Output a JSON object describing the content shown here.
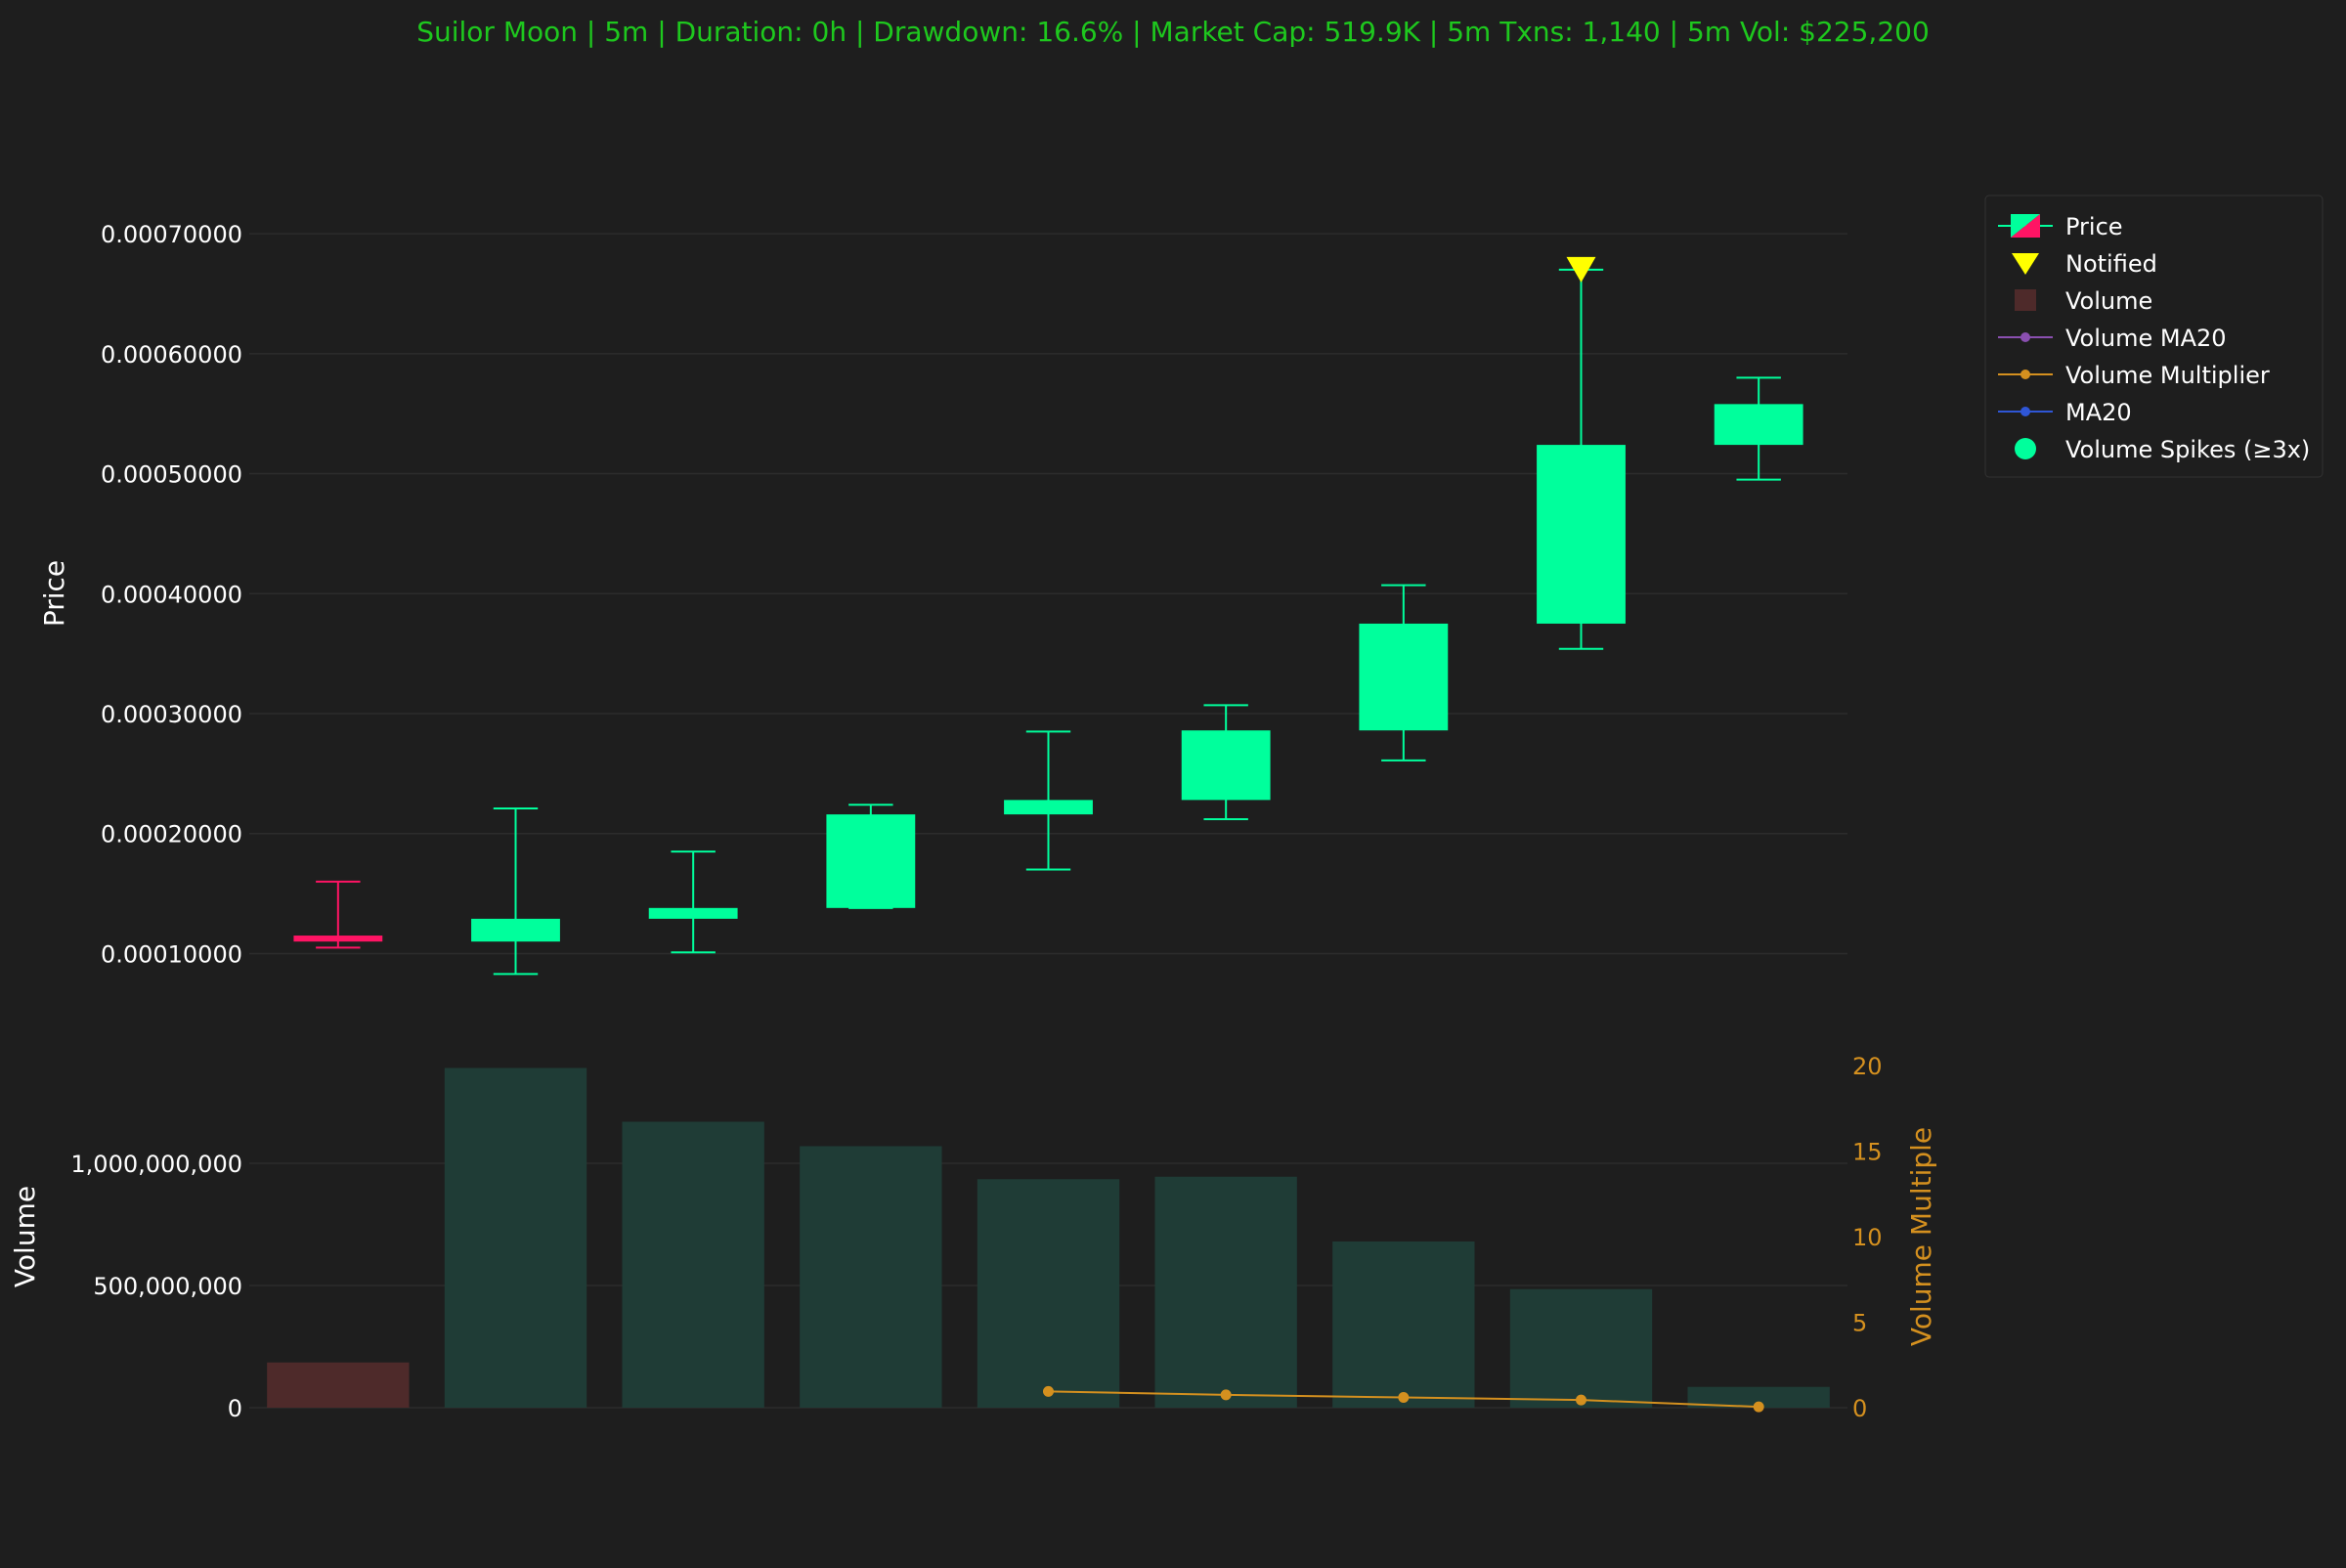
{
  "title": "Suilor Moon | 5m | Duration: 0h | Drawdown: 16.6% | Market Cap: 519.9K | 5m Txns: 1,140 | 5m Vol: $225,200",
  "colors": {
    "background": "#1e1e1e",
    "title": "#1ec81e",
    "up": "#00ff9c",
    "down": "#ff1464",
    "volume_up": "#1f3c36",
    "volume_down": "#4e2a2a",
    "multiplier": "#d4901f",
    "ma20_volume": "#8a4fb0",
    "ma20": "#2f56d6",
    "notified": "#ffff00",
    "grid": "#2c2c2c",
    "legend_border": "#333333",
    "text": "#ffffff"
  },
  "legend": {
    "items": [
      {
        "label": "Price",
        "icon": "candlestick-icon"
      },
      {
        "label": "Notified",
        "icon": "triangle-down-icon"
      },
      {
        "label": "Volume",
        "icon": "square-icon"
      },
      {
        "label": "Volume MA20",
        "icon": "line-marker-icon"
      },
      {
        "label": "Volume Multiplier",
        "icon": "line-marker-icon"
      },
      {
        "label": "MA20",
        "icon": "line-marker-icon"
      },
      {
        "label": "Volume Spikes (≥3x)",
        "icon": "circle-icon"
      }
    ]
  },
  "chart_data": {
    "type": "candlestick",
    "title": "Suilor Moon | 5m | Duration: 0h | Drawdown: 16.6% | Market Cap: 519.9K | 5m Txns: 1,140 | 5m Vol: $225,200",
    "price_panel": {
      "ylabel": "Price",
      "yticks": [
        "0.00010000",
        "0.00020000",
        "0.00030000",
        "0.00040000",
        "0.00050000",
        "0.00060000",
        "0.00070000"
      ],
      "ylim": [
        8e-05,
        0.00074
      ],
      "grid": true,
      "candles": [
        {
          "open": 0.000115,
          "high": 0.00016,
          "low": 0.000105,
          "close": 0.00011
        },
        {
          "open": 0.00011,
          "high": 0.000221,
          "low": 8.3e-05,
          "close": 0.000129
        },
        {
          "open": 0.000129,
          "high": 0.000185,
          "low": 0.000101,
          "close": 0.000138
        },
        {
          "open": 0.000138,
          "high": 0.000224,
          "low": 0.000138,
          "close": 0.000216
        },
        {
          "open": 0.000216,
          "high": 0.000285,
          "low": 0.00017,
          "close": 0.000228
        },
        {
          "open": 0.000228,
          "high": 0.000307,
          "low": 0.000212,
          "close": 0.000286
        },
        {
          "open": 0.000286,
          "high": 0.000407,
          "low": 0.000261,
          "close": 0.000375
        },
        {
          "open": 0.000375,
          "high": 0.00067,
          "low": 0.000354,
          "close": 0.000524
        },
        {
          "open": 0.000524,
          "high": 0.00058,
          "low": 0.000495,
          "close": 0.000558
        }
      ],
      "notified": [
        {
          "index": 7,
          "price": 0.00067
        }
      ]
    },
    "volume_panel": {
      "ylabel": "Volume",
      "yticks": [
        "0",
        "500,000,000",
        "1,000,000,000"
      ],
      "ylim": [
        0,
        1460000000
      ],
      "values": [
        185000000,
        1390000000,
        1170000000,
        1070000000,
        935000000,
        945000000,
        680000000,
        485000000,
        85000000
      ],
      "direction": [
        "down",
        "up",
        "up",
        "up",
        "up",
        "up",
        "up",
        "up",
        "up"
      ]
    },
    "volume_multiplier": {
      "ylabel": "Volume Multiple",
      "yticks": [
        "0",
        "5",
        "10",
        "15",
        "20"
      ],
      "ylim": [
        0,
        20
      ],
      "points": [
        {
          "index": 4,
          "value": 0.95
        },
        {
          "index": 5,
          "value": 0.75
        },
        {
          "index": 6,
          "value": 0.6
        },
        {
          "index": 7,
          "value": 0.45
        },
        {
          "index": 8,
          "value": 0.05
        }
      ]
    }
  }
}
